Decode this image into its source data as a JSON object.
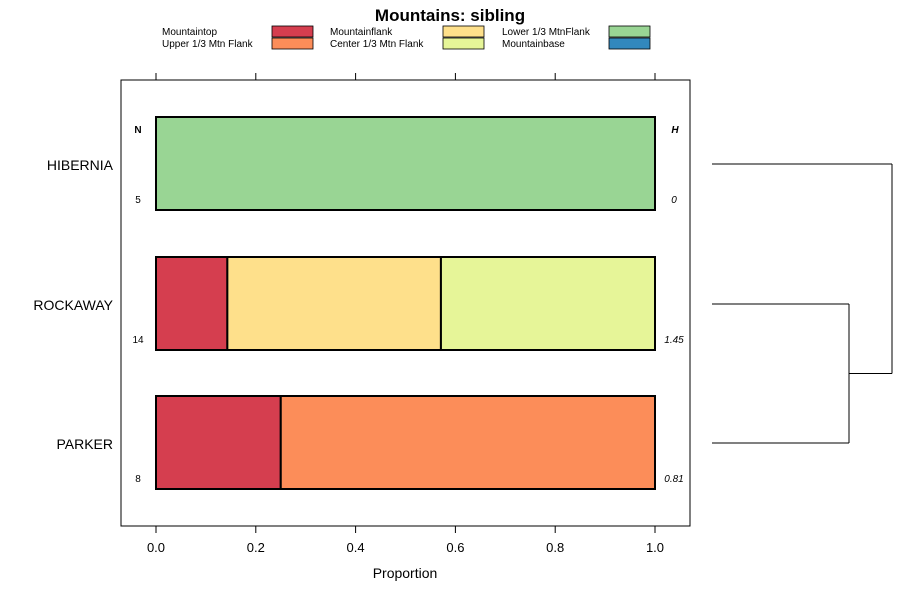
{
  "chart_data": {
    "type": "bar",
    "orientation": "horizontal",
    "stacked": true,
    "title": "Mountains: sibling",
    "xlabel": "Proportion",
    "ylabel": "",
    "xlim": [
      -0.07,
      1.07
    ],
    "xticks": [
      "0.0",
      "0.2",
      "0.4",
      "0.6",
      "0.8",
      "1.0"
    ],
    "xtick_values": [
      0,
      0.2,
      0.4,
      0.6,
      0.8,
      1.0
    ],
    "legend_position": "top",
    "legend": [
      {
        "label": "Mountaintop",
        "color": "#d53e4f"
      },
      {
        "label": "Upper 1/3 Mtn Flank",
        "color": "#fc8d59"
      },
      {
        "label": "Mountainflank",
        "color": "#fee08b"
      },
      {
        "label": "Center 1/3 Mtn Flank",
        "color": "#e6f598"
      },
      {
        "label": "Lower 1/3 MtnFlank",
        "color": "#99d594"
      },
      {
        "label": "Mountainbase",
        "color": "#3288bd"
      }
    ],
    "n_header": "N",
    "h_header": "H",
    "categories": [
      "HIBERNIA",
      "ROCKAWAY",
      "PARKER"
    ],
    "rows": [
      {
        "name": "HIBERNIA",
        "n": "5",
        "h": "0",
        "segments": [
          {
            "label": "Lower 1/3 MtnFlank",
            "value": 1.0
          }
        ]
      },
      {
        "name": "ROCKAWAY",
        "n": "14",
        "h": "1.45",
        "segments": [
          {
            "label": "Mountaintop",
            "value": 0.143
          },
          {
            "label": "Mountainflank",
            "value": 0.428
          },
          {
            "label": "Center 1/3 Mtn Flank",
            "value": 0.429
          }
        ]
      },
      {
        "name": "PARKER",
        "n": "8",
        "h": "0.81",
        "segments": [
          {
            "label": "Mountaintop",
            "value": 0.25
          },
          {
            "label": "Upper 1/3 Mtn Flank",
            "value": 0.75
          }
        ]
      }
    ],
    "dendrogram": {
      "merges": [
        {
          "left": "ROCKAWAY",
          "right": "PARKER",
          "height": "low"
        },
        {
          "left": "HIBERNIA",
          "right": "ROCKAWAY+PARKER",
          "height": "high"
        }
      ]
    }
  }
}
